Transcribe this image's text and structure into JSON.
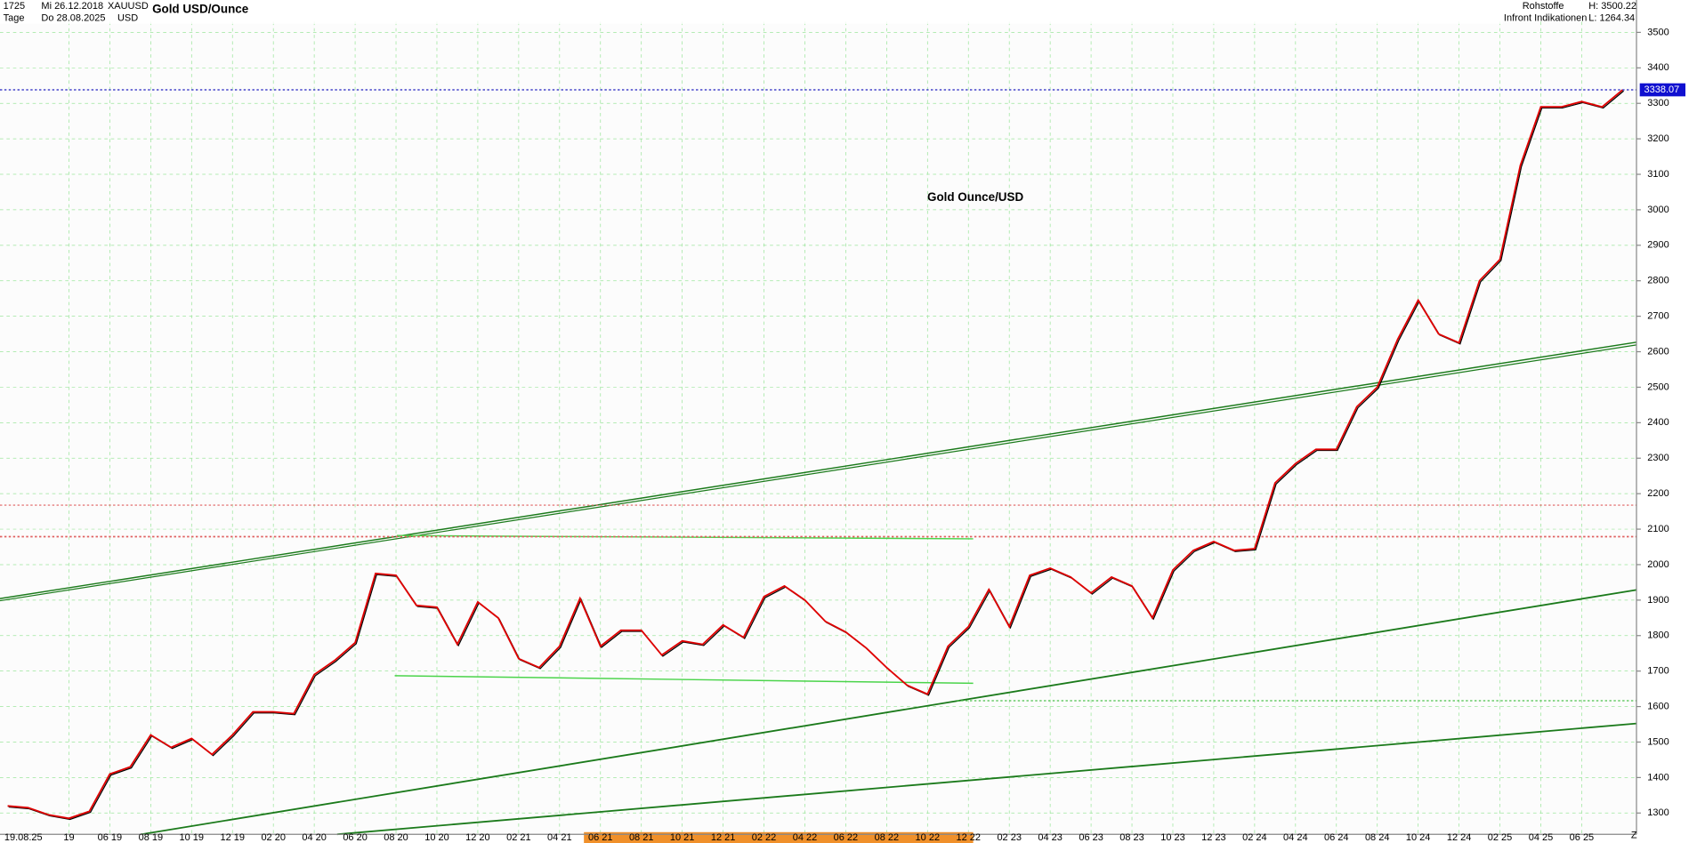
{
  "header": {
    "count": "1725",
    "start_day": "Mi 26.12.2018",
    "period": "Tage",
    "end_day": "Do 28.08.2025",
    "symbol": "XAUUSD",
    "currency": "USD",
    "source": "Rohstoffe",
    "provider": "Infront Indikationen",
    "high": "H: 3500.22",
    "low": "L: 1264.34",
    "corner": "Z"
  },
  "chart_data": {
    "type": "line",
    "title": "Gold USD/Ounce",
    "annotation": "Gold Ounce/USD",
    "cursor_label": "19.08.25",
    "categories": [
      null,
      null,
      null,
      "19",
      null,
      "06 19",
      null,
      "08 19",
      null,
      "10 19",
      null,
      "12 19",
      null,
      "02 20",
      null,
      "04 20",
      null,
      "06 20",
      null,
      "08 20",
      null,
      "10 20",
      null,
      "12 20",
      null,
      "02 21",
      null,
      "04 21",
      null,
      "06 21",
      null,
      "08 21",
      null,
      "10 21",
      null,
      "12 21",
      null,
      "02 22",
      null,
      "04 22",
      null,
      "06 22",
      null,
      "08 22",
      null,
      "10 22",
      null,
      "12 22",
      null,
      "02 23",
      null,
      "04 23",
      null,
      "06 23",
      null,
      "08 23",
      null,
      "10 23",
      null,
      "12 23",
      null,
      "02 24",
      null,
      "04 24",
      null,
      "06 24",
      null,
      "08 24",
      null,
      "10 24",
      null,
      "12 24",
      null,
      "02 25",
      null,
      "04 25",
      null,
      "06 25",
      null,
      null
    ],
    "series": [
      {
        "name": "XAUUSD",
        "color": "#e00000",
        "values": [
          1320,
          1315,
          1295,
          1285,
          1305,
          1410,
          1430,
          1520,
          1485,
          1510,
          1465,
          1520,
          1585,
          1585,
          1580,
          1690,
          1730,
          1780,
          1975,
          1970,
          1885,
          1880,
          1775,
          1895,
          1850,
          1735,
          1710,
          1770,
          1905,
          1770,
          1815,
          1815,
          1745,
          1785,
          1775,
          1830,
          1795,
          1910,
          1940,
          1900,
          1840,
          1810,
          1765,
          1710,
          1660,
          1635,
          1770,
          1825,
          1930,
          1825,
          1970,
          1990,
          1965,
          1920,
          1965,
          1940,
          1850,
          1985,
          2040,
          2065,
          2040,
          2045,
          2230,
          2285,
          2325,
          2325,
          2445,
          2500,
          2635,
          2745,
          2650,
          2625,
          2800,
          2860,
          3125,
          3290,
          3290,
          3305,
          3290,
          3338
        ]
      }
    ],
    "last_price": 3338.07,
    "ylim": [
      1240,
      3530
    ],
    "yticks": [
      1300,
      1400,
      1500,
      1600,
      1700,
      1800,
      1900,
      2000,
      2100,
      2200,
      2300,
      2400,
      2500,
      2600,
      2700,
      2800,
      2900,
      3000,
      3100,
      3200,
      3300,
      3400,
      3500
    ],
    "grid": true
  }
}
